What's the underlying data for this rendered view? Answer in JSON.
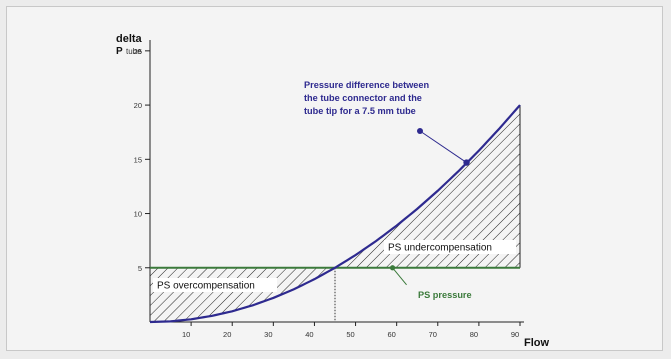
{
  "chart_data": {
    "type": "line",
    "ylabel_main": "delta",
    "ylabel_p": "P",
    "ylabel_sub": "tube",
    "xlabel": "Flow",
    "xlim": [
      0,
      90
    ],
    "ylim": [
      0,
      26
    ],
    "x_ticks": [
      10,
      20,
      30,
      40,
      50,
      60,
      70,
      80,
      90
    ],
    "y_ticks": [
      5,
      10,
      15,
      20,
      25
    ],
    "series": [
      {
        "name": "Pressure difference between the tube connector and the tube tip for a 7.5 mm tube",
        "x": [
          0,
          5,
          10,
          15,
          20,
          25,
          30,
          35,
          40,
          45,
          50,
          55,
          60,
          65,
          70,
          75,
          80,
          85,
          90
        ],
        "values": [
          0,
          0.06,
          0.25,
          0.56,
          0.99,
          1.54,
          2.22,
          3.02,
          3.95,
          5.0,
          6.17,
          7.47,
          8.89,
          10.43,
          12.1,
          13.89,
          15.8,
          17.84,
          20.0
        ],
        "color": "#2e2a8f"
      },
      {
        "name": "PS pressure",
        "x": [
          0,
          90
        ],
        "values": [
          5,
          5
        ],
        "color": "#3b7a3b"
      }
    ],
    "regions": [
      {
        "label": "PS overcompensation",
        "x_range": [
          0,
          45
        ]
      },
      {
        "label": "PS undercompensation",
        "x_range": [
          45,
          90
        ]
      }
    ],
    "crossover_x": 45,
    "marker_point": {
      "x": 77,
      "y": 14.7
    },
    "annotation_lines": [
      "Pressure difference between",
      "the tube connector and the",
      "tube tip for a 7.5 mm tube"
    ],
    "annotation_color": "#2e2a8f",
    "ps_label": "PS pressure",
    "ps_color": "#3b7a3b"
  }
}
